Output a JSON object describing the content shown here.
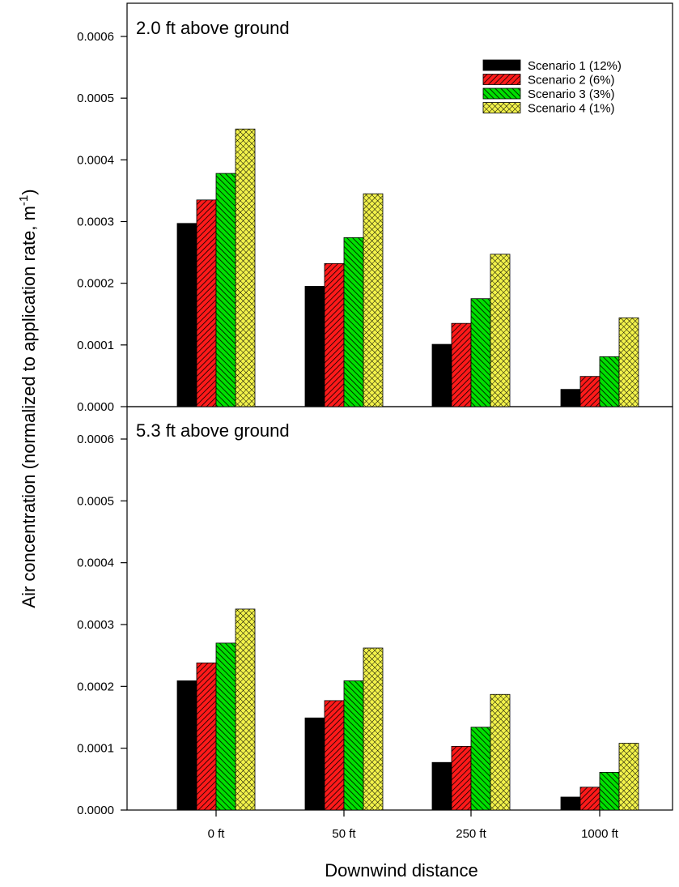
{
  "chart_data": [
    {
      "type": "bar",
      "title": "2.0 ft above ground",
      "categories": [
        "0 ft",
        "50 ft",
        "250 ft",
        "1000 ft"
      ],
      "series": [
        {
          "name": "Scenario 1 (12%)",
          "values": [
            0.000297,
            0.000195,
            0.000101,
            2.8e-05
          ]
        },
        {
          "name": "Scenario 2 (6%)",
          "values": [
            0.000335,
            0.000232,
            0.000135,
            4.9e-05
          ]
        },
        {
          "name": "Scenario 3 (3%)",
          "values": [
            0.000378,
            0.000274,
            0.000175,
            8.1e-05
          ]
        },
        {
          "name": "Scenario 4 (1%)",
          "values": [
            0.00045,
            0.000345,
            0.000247,
            0.000144
          ]
        }
      ],
      "ylim": [
        0,
        0.0006
      ],
      "yticks": [
        "0.0000",
        "0.0001",
        "0.0002",
        "0.0003",
        "0.0004",
        "0.0005",
        "0.0006"
      ],
      "legend": "top-right"
    },
    {
      "type": "bar",
      "title": "5.3 ft above ground",
      "categories": [
        "0 ft",
        "50 ft",
        "250 ft",
        "1000 ft"
      ],
      "series": [
        {
          "name": "Scenario 1 (12%)",
          "values": [
            0.000209,
            0.000149,
            7.7e-05,
            2.1e-05
          ]
        },
        {
          "name": "Scenario 2 (6%)",
          "values": [
            0.000238,
            0.000177,
            0.000103,
            3.7e-05
          ]
        },
        {
          "name": "Scenario 3 (3%)",
          "values": [
            0.00027,
            0.000209,
            0.000134,
            6.1e-05
          ]
        },
        {
          "name": "Scenario 4 (1%)",
          "values": [
            0.000325,
            0.000262,
            0.000187,
            0.000108
          ]
        }
      ],
      "ylim": [
        0,
        0.0006
      ],
      "yticks": [
        "0.0000",
        "0.0001",
        "0.0002",
        "0.0003",
        "0.0004",
        "0.0005",
        "0.0006"
      ]
    }
  ],
  "axes": {
    "ylabel_main": "Air concentration (normalized to application rate, m",
    "ylabel_sup": "-1",
    "ylabel_end": ")",
    "xlabel": "Downwind distance"
  },
  "series_style": [
    {
      "color": "#000000",
      "pattern": "solid"
    },
    {
      "color": "#e00000",
      "pattern": "diagonal-hatch"
    },
    {
      "color": "#00e000",
      "pattern": "back-diagonal-hatch"
    },
    {
      "color": "#f0f040",
      "pattern": "crosshatch"
    }
  ]
}
